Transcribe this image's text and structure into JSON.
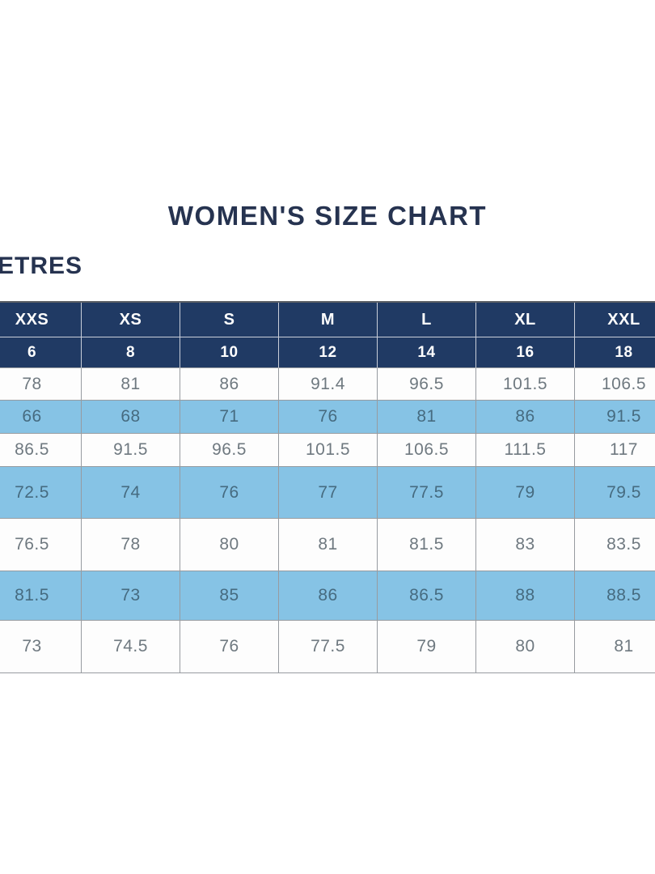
{
  "title": "WOMEN'S SIZE CHART",
  "units_label": "ETRES",
  "colors": {
    "header_navy": "#203a64",
    "title_navy": "#263350",
    "row_light_blue": "#86c3e5",
    "row_white": "#fdfdfd",
    "cell_text_grey": "#6f7980",
    "cell_text_blue_row": "#466b80",
    "border_grey": "#979ba0",
    "header_divider": "#c9ced9"
  },
  "chart_data": {
    "type": "table",
    "title": "WOMEN'S SIZE CHART",
    "size_labels": [
      "XXS",
      "XS",
      "S",
      "M",
      "L",
      "XL",
      "XXL"
    ],
    "size_numbers": [
      "6",
      "8",
      "10",
      "12",
      "14",
      "16",
      "18"
    ],
    "rows": [
      {
        "shade": "white",
        "values": [
          "78",
          "81",
          "86",
          "91.4",
          "96.5",
          "101.5",
          "106.5"
        ]
      },
      {
        "shade": "blue",
        "values": [
          "66",
          "68",
          "71",
          "76",
          "81",
          "86",
          "91.5"
        ]
      },
      {
        "shade": "white",
        "values": [
          "86.5",
          "91.5",
          "96.5",
          "101.5",
          "106.5",
          "111.5",
          "117"
        ]
      },
      {
        "shade": "blue",
        "values": [
          "72.5",
          "74",
          "76",
          "77",
          "77.5",
          "79",
          "79.5"
        ]
      },
      {
        "shade": "white",
        "values": [
          "76.5",
          "78",
          "80",
          "81",
          "81.5",
          "83",
          "83.5"
        ]
      },
      {
        "shade": "blue",
        "values": [
          "81.5",
          "73",
          "85",
          "86",
          "86.5",
          "88",
          "88.5"
        ]
      },
      {
        "shade": "white",
        "values": [
          "73",
          "74.5",
          "76",
          "77.5",
          "79",
          "80",
          "81"
        ]
      }
    ]
  }
}
